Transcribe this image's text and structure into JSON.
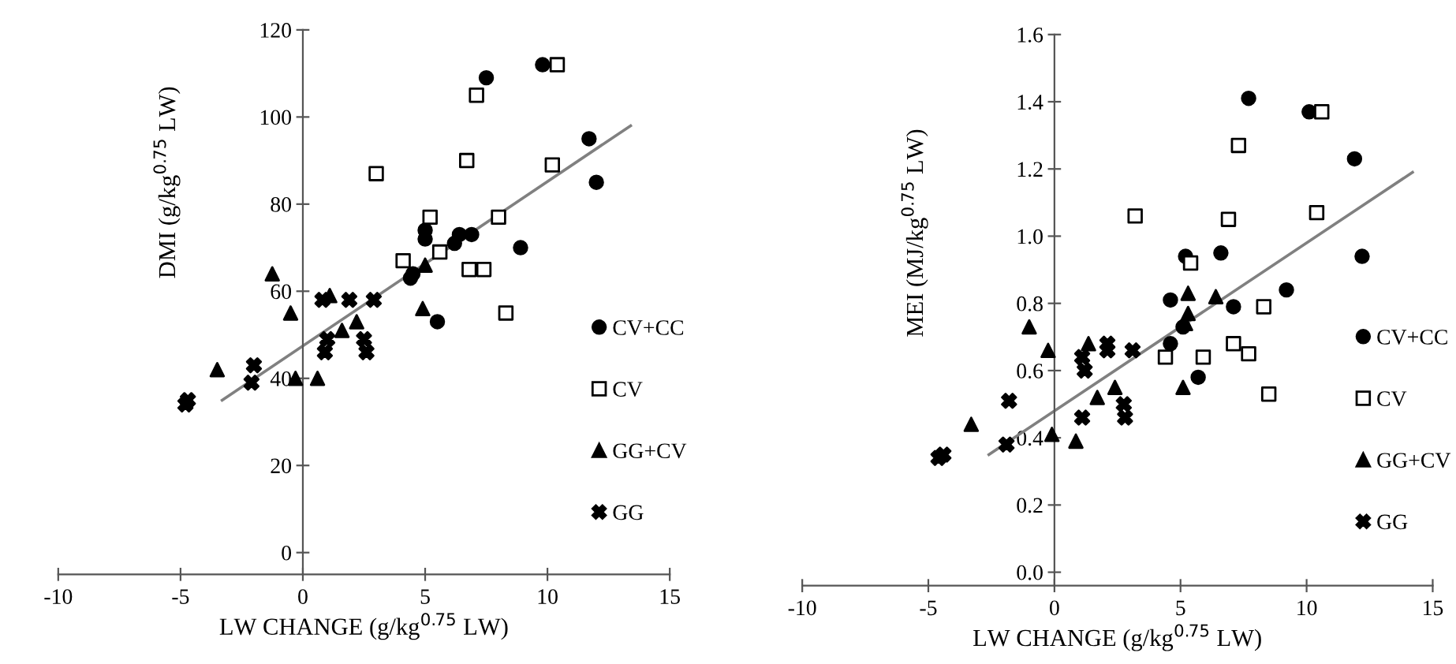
{
  "chart_data": [
    {
      "type": "scatter",
      "ylabel": "DMI (g/kg$^{0.75}$ LW)",
      "xlabel": "LW CHANGE (g/kg$^{0.75}$ LW)",
      "xlim": [
        -10,
        15
      ],
      "xticks": [
        -10,
        -5,
        0,
        5,
        10,
        15
      ],
      "ylim": [
        -5,
        120
      ],
      "yticks": [
        0,
        20,
        40,
        60,
        80,
        100,
        120
      ],
      "grid": false,
      "legend": "right",
      "series": [
        {
          "name": "CV+CC",
          "color": "#000000",
          "marker": "circle",
          "x": [
            7.5,
            6.4,
            5.0,
            5.0,
            6.9,
            8.9,
            6.2,
            5.5,
            4.4,
            4.5,
            9.8,
            11.7,
            12.0
          ],
          "values": [
            109,
            73,
            74,
            72,
            73,
            70,
            71,
            53,
            63,
            64,
            112,
            95,
            85
          ]
        },
        {
          "name": "CV",
          "color": "#000000",
          "marker": "square",
          "x": [
            7.1,
            6.7,
            3.0,
            5.2,
            8.0,
            4.1,
            5.6,
            6.8,
            7.4,
            8.3,
            10.4,
            10.2
          ],
          "values": [
            105,
            90,
            87,
            77,
            77,
            67,
            69,
            65,
            65,
            55,
            112,
            89
          ]
        },
        {
          "name": "GG+CV",
          "color": "#000000",
          "marker": "triangle",
          "x": [
            -1.25,
            -0.5,
            -3.5,
            -0.3,
            0.6,
            1.1,
            1.6,
            2.2,
            5.0,
            4.9
          ],
          "values": [
            64,
            55,
            42,
            40,
            40,
            59,
            51,
            53,
            66,
            56
          ]
        },
        {
          "name": "GG",
          "color": "#000000",
          "marker": "cross",
          "x": [
            -4.8,
            -4.7,
            -2.1,
            -2.0,
            0.8,
            1.0,
            0.9,
            1.9,
            2.5,
            2.6,
            2.9
          ],
          "values": [
            34,
            35,
            39,
            43,
            58,
            49,
            46,
            58,
            49,
            46,
            58
          ]
        },
        {
          "type": "line",
          "color": "#808080",
          "marker": "none",
          "x": [
            -3.3,
            13.4
          ],
          "values": [
            35,
            98
          ]
        }
      ]
    },
    {
      "type": "scatter",
      "ylabel": "MEI (MJ/kg$^{0.75}$ LW)",
      "xlabel": "LW CHANGE (g/kg$^{0.75}$ LW)",
      "xlim": [
        -10,
        15
      ],
      "xticks": [
        -10,
        -5,
        0,
        5,
        10,
        15
      ],
      "ylim": [
        -0.04,
        1.6
      ],
      "yticks": [
        {
          "value": 0,
          "label": "0.0"
        },
        0.2,
        0.4,
        0.6,
        0.8,
        {
          "value": 1,
          "label": "1.0"
        },
        1.2,
        1.4,
        1.6
      ],
      "grid": false,
      "legend": "right",
      "series": [
        {
          "name": "CV+CC",
          "color": "#000000",
          "marker": "circle",
          "x": [
            7.7,
            10.1,
            11.9,
            12.2,
            5.2,
            6.6,
            9.2,
            4.6,
            7.1,
            5.1,
            4.6,
            5.7
          ],
          "values": [
            1.41,
            1.37,
            1.23,
            0.94,
            0.94,
            0.95,
            0.84,
            0.81,
            0.79,
            0.73,
            0.68,
            0.58
          ]
        },
        {
          "name": "CV",
          "color": "#000000",
          "marker": "square",
          "x": [
            10.6,
            7.3,
            6.9,
            10.4,
            5.4,
            8.3,
            7.1,
            5.9,
            7.7,
            4.4,
            8.5,
            3.2
          ],
          "values": [
            1.37,
            1.27,
            1.05,
            1.07,
            0.92,
            0.79,
            0.68,
            0.64,
            0.65,
            0.64,
            0.53,
            1.06
          ]
        },
        {
          "name": "GG+CV",
          "color": "#000000",
          "marker": "triangle",
          "x": [
            5.3,
            6.4,
            5.3,
            5.2,
            5.1,
            -1.0,
            -0.25,
            1.35,
            2.4,
            1.7,
            -3.3,
            -0.1,
            0.85
          ],
          "values": [
            0.83,
            0.82,
            0.77,
            0.74,
            0.55,
            0.73,
            0.66,
            0.68,
            0.55,
            0.52,
            0.44,
            0.41,
            0.39
          ]
        },
        {
          "name": "GG",
          "color": "#000000",
          "marker": "cross",
          "x": [
            -4.6,
            -4.4,
            -1.8,
            -1.9,
            1.1,
            1.2,
            1.1,
            2.1,
            2.1,
            2.75,
            2.8,
            3.1
          ],
          "values": [
            0.34,
            0.35,
            0.51,
            0.38,
            0.64,
            0.6,
            0.46,
            0.68,
            0.66,
            0.5,
            0.46,
            0.66
          ]
        },
        {
          "type": "line",
          "color": "#808080",
          "marker": "none",
          "x": [
            -2.6,
            14.2
          ],
          "values": [
            0.35,
            1.19
          ]
        }
      ]
    }
  ]
}
